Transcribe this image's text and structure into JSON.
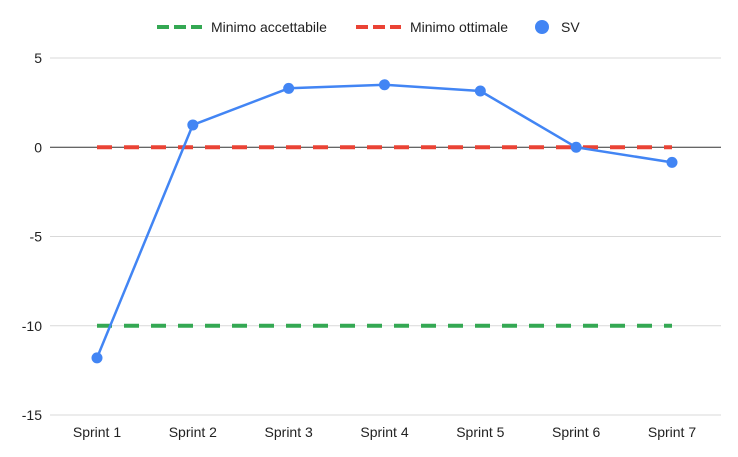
{
  "chart_data": {
    "type": "line",
    "title": "",
    "xlabel": "",
    "ylabel": "",
    "categories": [
      "Sprint 1",
      "Sprint 2",
      "Sprint 3",
      "Sprint 4",
      "Sprint 5",
      "Sprint 6",
      "Sprint 7"
    ],
    "ylim": [
      -15,
      5
    ],
    "yticks": [
      5,
      0,
      -5,
      -10,
      -15
    ],
    "ytick_labels": [
      "5",
      "0",
      "-5",
      "-10",
      "-15"
    ],
    "grid": true,
    "legend_position": "top",
    "series": [
      {
        "name": "Minimo accettabile",
        "style": "dashed",
        "color": "#34a853",
        "values": [
          -10,
          -10,
          -10,
          -10,
          -10,
          -10,
          -10
        ]
      },
      {
        "name": "Minimo ottimale",
        "style": "dashed",
        "color": "#ea4335",
        "values": [
          0,
          0,
          0,
          0,
          0,
          0,
          0
        ]
      },
      {
        "name": "SV",
        "style": "solid-with-markers",
        "color": "#4285f4",
        "values": [
          -11.8,
          1.25,
          3.3,
          3.5,
          3.15,
          0.0,
          -0.85
        ]
      }
    ]
  }
}
